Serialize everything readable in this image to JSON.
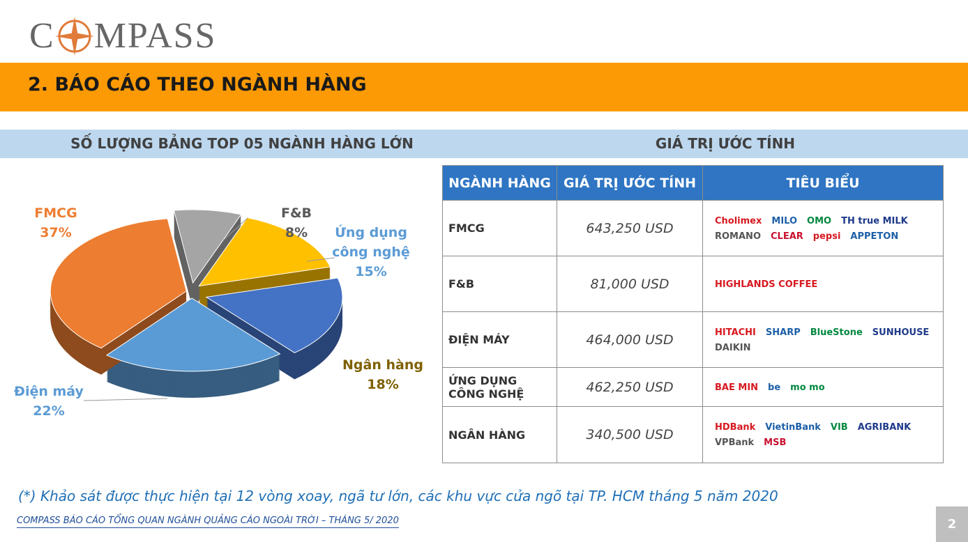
{
  "logo": [
    "C",
    "MPASS"
  ],
  "header": {
    "title": "2. BÁO CÁO THEO NGÀNH HÀNG"
  },
  "left_heading": "SỐ LƯỢNG BẢNG TOP 05 NGÀNH HÀNG LỚN",
  "right_heading": "GIÁ TRỊ ƯỚC TÍNH",
  "chart_data": {
    "type": "pie",
    "categories": [
      "F&B",
      "Ứng dụng công nghệ",
      "Ngân hàng",
      "Điện máy",
      "FMCG"
    ],
    "values": [
      8,
      15,
      18,
      22,
      37
    ],
    "value_labels": [
      "8%",
      "15%",
      "18%",
      "22%",
      "37%"
    ],
    "colors": [
      "#a5a5a5",
      "#ffc000",
      "#4472c4",
      "#5b9bd5",
      "#ed7d31"
    ],
    "label_colors": [
      "#595959",
      "#5b9bd5",
      "#7f6000",
      "#5b9bd5",
      "#ed7d31"
    ]
  },
  "table": {
    "columns": [
      "NGÀNH HÀNG",
      "GIÁ TRỊ ƯỚC TÍNH",
      "TIÊU BIỂU"
    ],
    "rows": [
      {
        "industry": "FMCG",
        "value": "643,250 USD",
        "brands": [
          "Cholimex",
          "MILO",
          "OMO",
          "TH true MILK",
          "ROMANO",
          "CLEAR",
          "pepsi",
          "APPETON"
        ]
      },
      {
        "industry": "F&B",
        "value": "81,000 USD",
        "brands": [
          "HIGHLANDS COFFEE"
        ]
      },
      {
        "industry": "ĐIỆN MÁY",
        "value": "464,000 USD",
        "brands": [
          "HITACHI",
          "SHARP",
          "BlueStone",
          "SUNHOUSE",
          "DAIKIN"
        ]
      },
      {
        "industry": "ỨNG DỤNG CÔNG NGHỆ",
        "value": "462,250 USD",
        "brands": [
          "BAE MIN",
          "be",
          "mo mo"
        ]
      },
      {
        "industry": "NGÂN HÀNG",
        "value": "340,500 USD",
        "brands": [
          "HDBank",
          "VietinBank",
          "VIB",
          "AGRIBANK",
          "VPBank",
          "MSB"
        ]
      }
    ]
  },
  "footnote": "(*) Khảo sát được thực hiện tại 12 vòng xoay, ngã tư lớn, các khu vực cửa ngõ tại TP. HCM tháng 5 năm 2020",
  "footer": "COMPASS BÁO CÁO TỔNG QUAN NGÀNH QUẢNG CÁO NGOÀI TRỜI – THÁNG 5/ 2020",
  "page": 2
}
